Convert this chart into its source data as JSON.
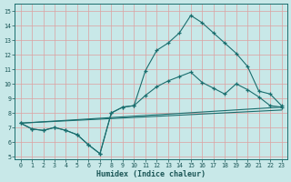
{
  "title": "",
  "xlabel": "Humidex (Indice chaleur)",
  "bg_color": "#c8e8e8",
  "grid_color_major_x": "#e8b8b8",
  "grid_color_major_y": "#e8b8b8",
  "line_color": "#1a6e6e",
  "xlim": [
    -0.5,
    23.5
  ],
  "ylim": [
    4.8,
    15.5
  ],
  "yticks": [
    5,
    6,
    7,
    8,
    9,
    10,
    11,
    12,
    13,
    14,
    15
  ],
  "xticks": [
    0,
    1,
    2,
    3,
    4,
    5,
    6,
    7,
    8,
    9,
    10,
    11,
    12,
    13,
    14,
    15,
    16,
    17,
    18,
    19,
    20,
    21,
    22,
    23
  ],
  "series": [
    {
      "x": [
        0,
        1,
        2,
        3,
        4,
        5,
        6,
        7,
        8,
        9,
        10,
        11,
        12,
        13,
        14,
        15,
        16,
        17,
        18,
        19,
        20,
        21,
        22,
        23
      ],
      "y": [
        7.3,
        6.9,
        6.8,
        7.0,
        6.8,
        6.5,
        5.8,
        5.2,
        8.0,
        8.4,
        8.5,
        10.9,
        12.3,
        12.8,
        13.5,
        14.7,
        14.2,
        13.5,
        12.8,
        12.1,
        11.2,
        9.5,
        9.3,
        8.5
      ],
      "marker": "+"
    },
    {
      "x": [
        0,
        1,
        2,
        3,
        4,
        5,
        6,
        7,
        8,
        9,
        10,
        11,
        12,
        13,
        14,
        15,
        16,
        17,
        18,
        19,
        20,
        21,
        22,
        23
      ],
      "y": [
        7.3,
        6.9,
        6.8,
        7.0,
        6.8,
        6.5,
        5.8,
        5.2,
        8.0,
        8.4,
        8.5,
        9.2,
        9.8,
        10.2,
        10.5,
        10.8,
        10.1,
        9.7,
        9.3,
        10.0,
        9.6,
        9.1,
        8.5,
        8.4
      ],
      "marker": "+"
    },
    {
      "x": [
        0,
        23
      ],
      "y": [
        7.3,
        8.4
      ],
      "marker": null
    },
    {
      "x": [
        0,
        23
      ],
      "y": [
        7.3,
        8.2
      ],
      "marker": null
    }
  ]
}
